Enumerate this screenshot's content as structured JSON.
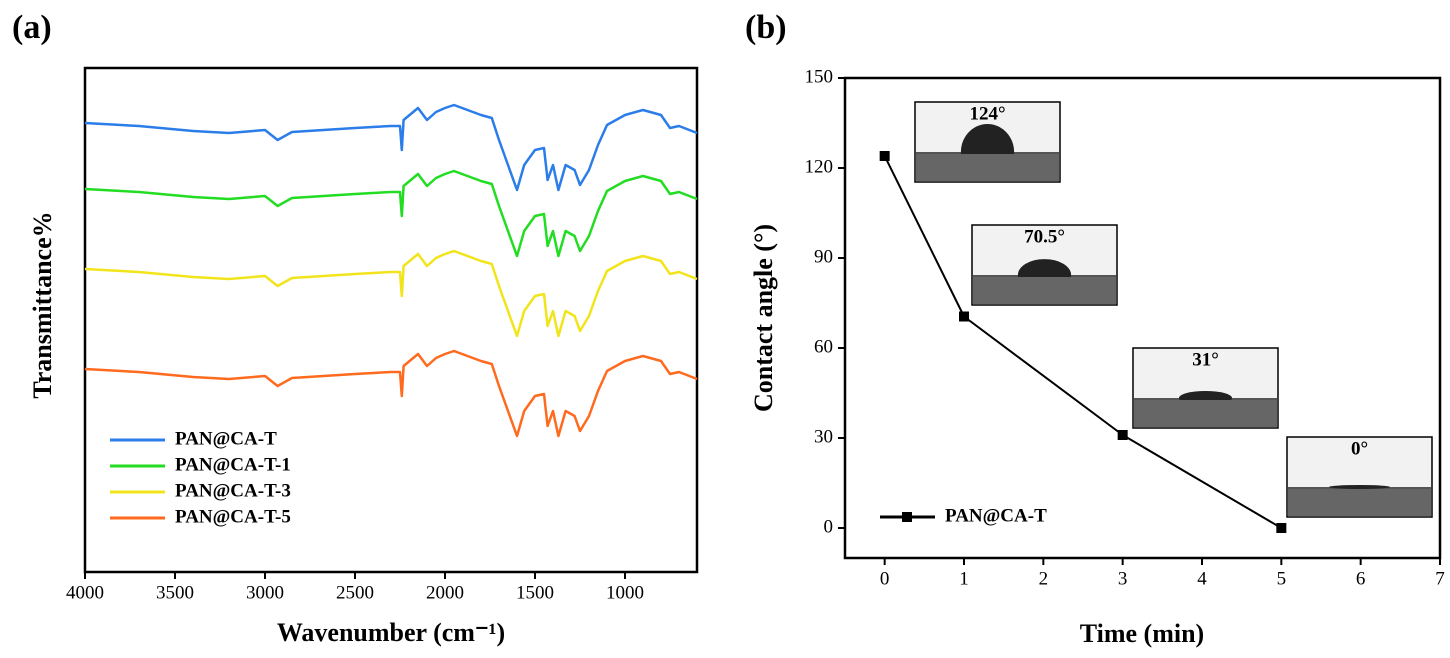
{
  "chart_data": [
    {
      "type": "line",
      "label": "(a)",
      "xlabel": "Wavenumber (cm⁻¹)",
      "ylabel": "Transmittance%",
      "xlim": [
        4000,
        600
      ],
      "ylim": [
        0,
        504
      ],
      "xticks": [
        4000,
        3500,
        3000,
        2500,
        2000,
        1500,
        1000
      ],
      "legend": "lower left",
      "markers": false,
      "x": [
        4000,
        3700,
        3400,
        3200,
        3000,
        2930,
        2850,
        2500,
        2300,
        2250,
        2240,
        2230,
        2150,
        2100,
        2050,
        2000,
        1950,
        1800,
        1740,
        1700,
        1650,
        1600,
        1560,
        1500,
        1450,
        1430,
        1400,
        1370,
        1330,
        1280,
        1250,
        1200,
        1150,
        1100,
        1050,
        1000,
        900,
        800,
        750,
        700,
        600
      ],
      "series": [
        {
          "name": "PAN@CA-T",
          "color": "#2b7de9",
          "values": [
            449,
            446,
            441,
            439,
            442,
            432,
            440,
            444,
            446,
            446,
            422,
            452,
            464,
            452,
            460,
            464,
            467,
            457,
            454,
            432,
            407,
            382,
            407,
            422,
            424,
            392,
            407,
            382,
            407,
            402,
            387,
            402,
            427,
            447,
            452,
            457,
            462,
            457,
            444,
            446,
            439
          ]
        },
        {
          "name": "PAN@CA-T-1",
          "color": "#22dd22",
          "values": [
            383,
            380,
            375,
            373,
            376,
            366,
            374,
            378,
            380,
            380,
            356,
            386,
            398,
            386,
            394,
            398,
            401,
            391,
            388,
            366,
            341,
            316,
            341,
            356,
            358,
            326,
            341,
            316,
            341,
            336,
            321,
            336,
            361,
            381,
            386,
            391,
            396,
            391,
            378,
            380,
            373
          ]
        },
        {
          "name": "PAN@CA-T-3",
          "color": "#f2e41a",
          "values": [
            303,
            300,
            295,
            293,
            296,
            286,
            294,
            298,
            300,
            300,
            276,
            306,
            318,
            306,
            314,
            318,
            321,
            311,
            308,
            286,
            261,
            236,
            261,
            276,
            278,
            246,
            261,
            236,
            261,
            256,
            241,
            256,
            281,
            301,
            306,
            311,
            316,
            311,
            298,
            300,
            293
          ]
        },
        {
          "name": "PAN@CA-T-5",
          "color": "#ff6a1f",
          "values": [
            203,
            200,
            195,
            193,
            196,
            186,
            194,
            198,
            200,
            200,
            176,
            206,
            218,
            206,
            214,
            218,
            221,
            211,
            208,
            186,
            161,
            136,
            161,
            176,
            178,
            146,
            161,
            136,
            161,
            156,
            141,
            156,
            181,
            201,
            206,
            211,
            216,
            211,
            198,
            200,
            193
          ]
        }
      ]
    },
    {
      "type": "line",
      "label": "(b)",
      "xlabel": "Time (min)",
      "ylabel": "Contact angle (°)",
      "xlim": [
        -0.5,
        7
      ],
      "ylim": [
        -10,
        150
      ],
      "xticks": [
        0,
        1,
        2,
        3,
        4,
        5,
        6,
        7
      ],
      "yticks": [
        0,
        30,
        60,
        90,
        120,
        150
      ],
      "legend": "lower left",
      "markers": true,
      "x": [
        0,
        1,
        3,
        5
      ],
      "series": [
        {
          "name": "PAN@CA-T",
          "color": "#000000",
          "values": [
            124,
            70.5,
            31,
            0
          ],
          "value_labels": [
            "124°",
            "70.5°",
            "31°",
            "0°"
          ]
        }
      ]
    }
  ]
}
